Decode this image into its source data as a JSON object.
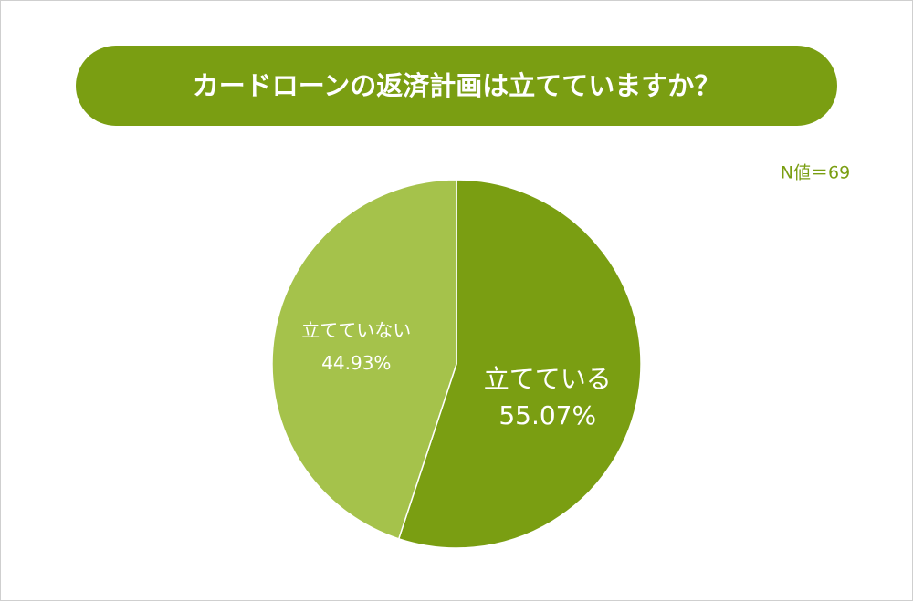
{
  "chart_data": {
    "type": "pie",
    "title": "カードローンの返済計画は立てていますか？",
    "annotation": "N値＝69",
    "categories": [
      "立てている",
      "立てていない"
    ],
    "values": [
      55.07,
      44.93
    ],
    "value_labels": [
      "55.07%",
      "44.93%"
    ],
    "colors": [
      "#7a9e12",
      "#a5c24b"
    ]
  }
}
